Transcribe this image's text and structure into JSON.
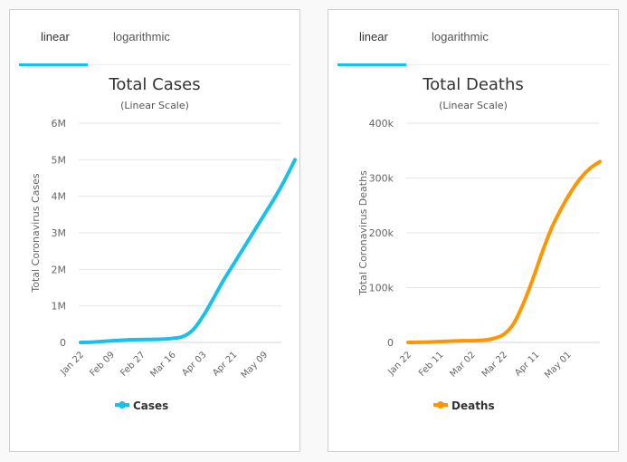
{
  "panels": [
    {
      "tabs": [
        {
          "label": "linear",
          "active": true
        },
        {
          "label": "logarithmic",
          "active": false
        }
      ]
    },
    {
      "tabs": [
        {
          "label": "linear",
          "active": true
        },
        {
          "label": "logarithmic",
          "active": false
        }
      ]
    }
  ],
  "chart_data": [
    {
      "type": "line",
      "title": "Total Cases",
      "subtitle": "(Linear Scale)",
      "xlabel": "",
      "ylabel": "Total Coronavirus Cases",
      "ylim": [
        0,
        6000000
      ],
      "yticks": [
        0,
        1000000,
        2000000,
        3000000,
        4000000,
        5000000,
        6000000
      ],
      "ytick_labels": [
        "0",
        "1M",
        "2M",
        "3M",
        "4M",
        "5M",
        "6M"
      ],
      "xtick_labels": [
        "Jan 22",
        "Feb 09",
        "Feb 27",
        "Mar 16",
        "Apr 03",
        "Apr 21",
        "May 09"
      ],
      "xtick_interval_days": 18,
      "color": "#17c1e8",
      "grid": true,
      "legend": {
        "position": "bottom-center",
        "entries": [
          "Cases"
        ]
      },
      "series": [
        {
          "name": "Cases",
          "x_start": "Jan 22",
          "x_step_days": 6,
          "values": [
            580,
            6000,
            24500,
            44000,
            60000,
            75000,
            79000,
            82000,
            90000,
            110000,
            160000,
            340000,
            720000,
            1200000,
            1700000,
            2150000,
            2600000,
            3050000,
            3500000,
            3950000,
            4450000,
            5000000
          ]
        }
      ]
    },
    {
      "type": "line",
      "title": "Total Deaths",
      "subtitle": "(Linear Scale)",
      "xlabel": "",
      "ylabel": "Total Coronavirus Deaths",
      "ylim": [
        0,
        400000
      ],
      "yticks": [
        0,
        100000,
        200000,
        300000,
        400000
      ],
      "ytick_labels": [
        "0",
        "100k",
        "200k",
        "300k",
        "400k"
      ],
      "xtick_labels": [
        "Jan 22",
        "Feb 11",
        "Mar 02",
        "Mar 22",
        "Apr 11",
        "May 01"
      ],
      "xtick_interval_days": 20,
      "color": "#ff9500",
      "grid": true,
      "legend": {
        "position": "bottom-center",
        "entries": [
          "Deaths"
        ]
      },
      "series": [
        {
          "name": "Deaths",
          "x_start": "Jan 22",
          "x_step_days": 6,
          "values": [
            17,
            130,
            560,
            1400,
            2000,
            2700,
            3100,
            3400,
            4300,
            7500,
            15000,
            34000,
            70000,
            115000,
            165000,
            210000,
            245000,
            275000,
            300000,
            318000,
            330000
          ]
        }
      ]
    }
  ]
}
